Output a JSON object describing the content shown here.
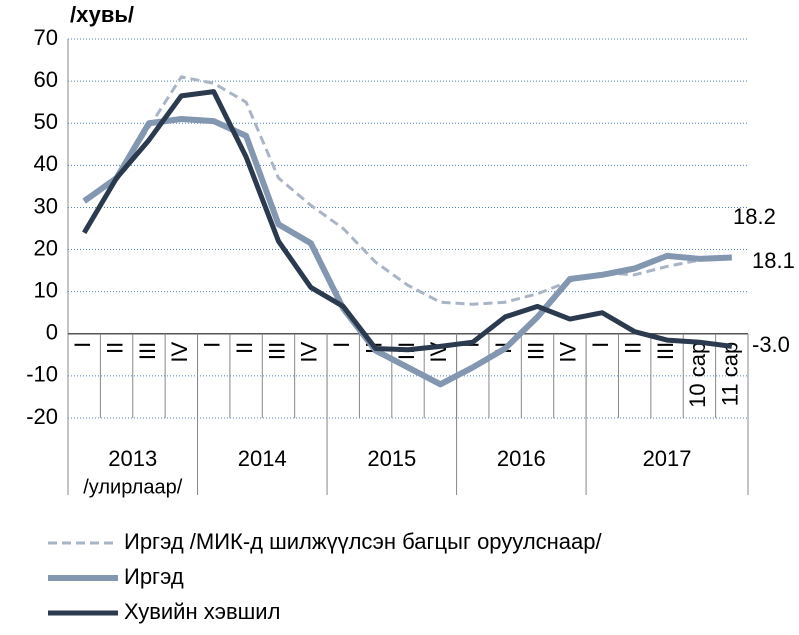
{
  "chart_data": {
    "type": "line",
    "y_axis_title": "/хувь/",
    "categories": [
      "I",
      "II",
      "III",
      "IV",
      "I",
      "II",
      "III",
      "IV",
      "I",
      "II",
      "III",
      "IV",
      "I",
      "II",
      "III",
      "IV",
      "I",
      "II",
      "III",
      "10 сар",
      "11 сар"
    ],
    "groups": [
      {
        "label": "2013",
        "sublabel": "/улирлаар/",
        "span": 4
      },
      {
        "label": "2014",
        "span": 4
      },
      {
        "label": "2015",
        "span": 4
      },
      {
        "label": "2016",
        "span": 4
      },
      {
        "label": "2017",
        "span": 5
      }
    ],
    "series": [
      {
        "name": "Иргэд /МИК-д шилжүүлсэн багцыг оруулснаар/",
        "color": "#a9b5c6",
        "dashed": true,
        "width": 3,
        "values": [
          32,
          37,
          49,
          61,
          59.5,
          55,
          37,
          30.5,
          25,
          17,
          11.5,
          7.5,
          7,
          7.5,
          9.5,
          12.5,
          14.5,
          14,
          16,
          17.5,
          18.2
        ]
      },
      {
        "name": "Иргэд",
        "color": "#8497b0",
        "dashed": false,
        "width": 6,
        "values": [
          31.5,
          37,
          50,
          51,
          50.5,
          47,
          26,
          21.5,
          6,
          -4,
          -8,
          -12,
          -8,
          -3.5,
          4,
          13,
          14,
          15.5,
          18.5,
          17.8,
          18.1
        ]
      },
      {
        "name": "Хувийн хэвшил",
        "color": "#2b3a4e",
        "dashed": false,
        "width": 5,
        "values": [
          24,
          37,
          46,
          56.5,
          57.5,
          42,
          22,
          11,
          6.5,
          -3.5,
          -3.8,
          -3,
          -2,
          4,
          6.5,
          3.5,
          5,
          0.5,
          -1.5,
          -2,
          -3.0
        ],
        "value_labels": [
          null,
          null,
          null,
          null,
          null,
          null,
          null,
          null,
          null,
          null,
          null,
          null,
          null,
          null,
          null,
          null,
          null,
          null,
          null,
          null,
          "-3.0"
        ]
      }
    ],
    "ylim": [
      -20,
      70
    ],
    "yticks": [
      -20,
      -10,
      0,
      10,
      20,
      30,
      40,
      50,
      60,
      70
    ],
    "grid": true
  }
}
